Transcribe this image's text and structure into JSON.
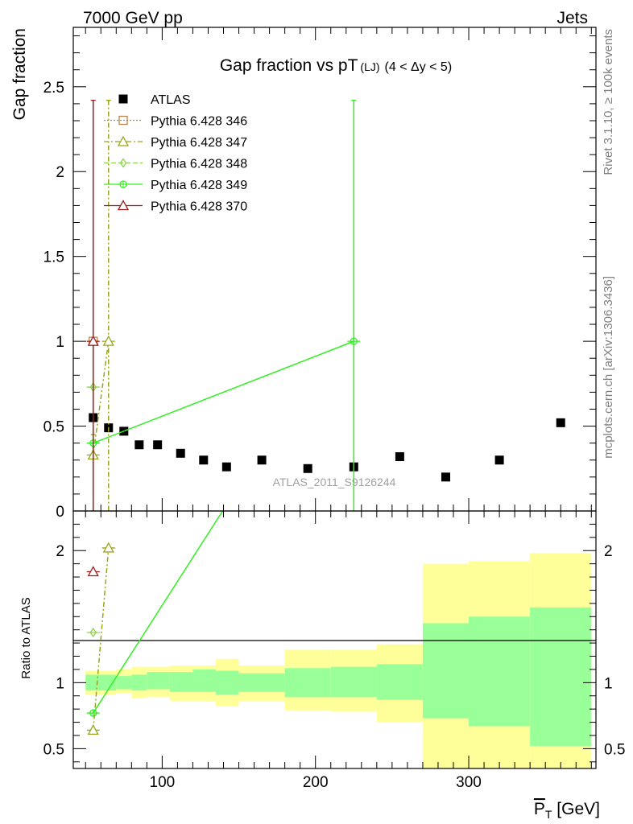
{
  "header": {
    "left": "7000 GeV pp",
    "right": "Jets"
  },
  "side_labels": {
    "rivet": "Rivet 3.1.10, ≥ 100k events",
    "mcplots": "mcplots.cern.ch [arXiv:1306.3436]"
  },
  "watermark": "ATLAS_2011_S9126244",
  "chart_data": [
    {
      "type": "scatter",
      "panel": "main",
      "title": "Gap fraction vs pT",
      "title_sub": "(LJ)",
      "title_cut": "(4 < Δy < 5)",
      "ylabel": "Gap fraction",
      "xlim": [
        42,
        383
      ],
      "ylim": [
        0,
        2.85
      ],
      "yticks": [
        0,
        0.5,
        1,
        1.5,
        2,
        2.5
      ],
      "ytick_labels": [
        "0",
        "0.5",
        "1",
        "1.5",
        "2",
        "2.5"
      ],
      "legend_position": "top-left",
      "series": [
        {
          "name": "ATLAS",
          "color": "#000000",
          "marker": "square",
          "x": [
            55,
            65,
            75,
            85,
            97,
            112,
            127,
            142,
            165,
            195,
            225,
            255,
            285,
            320,
            360
          ],
          "y": [
            0.55,
            0.49,
            0.47,
            0.39,
            0.39,
            0.34,
            0.3,
            0.26,
            0.3,
            0.25,
            0.26,
            0.32,
            0.2,
            0.3,
            0.52
          ]
        },
        {
          "name": "Pythia 6.428 346",
          "color": "#b8864e",
          "marker": "open-square",
          "dash": "2,2",
          "x": [
            55
          ],
          "y": [
            1.0
          ]
        },
        {
          "name": "Pythia 6.428 347",
          "color": "#9aa51a",
          "marker": "open-triangle",
          "dash": "6,3,2,3",
          "x": [
            55,
            65
          ],
          "y": [
            0.33,
            1.0
          ],
          "err_hi": [
            0.45,
            2.42
          ],
          "err_lo": [
            0.0,
            0.0
          ]
        },
        {
          "name": "Pythia 6.428 348",
          "color": "#8fd14f",
          "marker": "open-diamond",
          "dash": "6,3",
          "x": [
            55
          ],
          "y": [
            0.73
          ],
          "err_hi": [
            1.0
          ],
          "err_lo": [
            0.07
          ]
        },
        {
          "name": "Pythia 6.428 349",
          "color": "#33ee22",
          "marker": "open-circle-cross",
          "dash": "",
          "x": [
            55,
            225
          ],
          "y": [
            0.4,
            1.0
          ],
          "err_hi": [
            0.4,
            2.42
          ],
          "err_lo": [
            0.0,
            0.0
          ]
        },
        {
          "name": "Pythia 6.428 370",
          "color": "#9b1c1c",
          "marker": "open-triangle",
          "dash": "",
          "x": [
            55
          ],
          "y": [
            1.0
          ],
          "err_hi": [
            2.42
          ],
          "err_lo": [
            0.0
          ]
        }
      ]
    },
    {
      "type": "line",
      "panel": "ratio",
      "ylabel": "Ratio to ATLAS",
      "xlabel": "P_T [GeV]",
      "xlim": [
        42,
        383
      ],
      "ylim": [
        0.35,
        2.3
      ],
      "yticks": [
        0.5,
        1,
        2
      ],
      "ytick_labels": [
        "0.5",
        "1",
        "2"
      ],
      "xticks": [
        100,
        200,
        300
      ],
      "xtick_labels": [
        "100",
        "200",
        "300"
      ],
      "bands": {
        "edges": [
          50,
          60,
          70,
          80,
          90,
          105,
          120,
          135,
          150,
          180,
          210,
          240,
          270,
          300,
          340,
          380
        ],
        "inner_lo": [
          0.94,
          0.94,
          0.95,
          0.94,
          0.95,
          0.93,
          0.93,
          0.91,
          0.93,
          0.89,
          0.89,
          0.87,
          0.73,
          0.67,
          0.52
        ],
        "inner_hi": [
          1.06,
          1.06,
          1.05,
          1.06,
          1.08,
          1.08,
          1.1,
          1.09,
          1.07,
          1.11,
          1.12,
          1.14,
          1.45,
          1.5,
          1.57
        ],
        "outer_lo": [
          0.91,
          0.91,
          0.92,
          0.88,
          0.89,
          0.86,
          0.86,
          0.82,
          0.86,
          0.79,
          0.78,
          0.7,
          0.35,
          0.35,
          0.35
        ],
        "outer_hi": [
          1.09,
          1.09,
          1.1,
          1.12,
          1.12,
          1.13,
          1.13,
          1.18,
          1.13,
          1.25,
          1.25,
          1.29,
          1.9,
          1.92,
          1.98
        ],
        "inner_color": "#99ff99",
        "outer_color": "#ffff99"
      },
      "series": [
        {
          "name": "Pythia 6.428 347",
          "color": "#9aa51a",
          "marker": "open-triangle",
          "dash": "6,3,2,3",
          "x": [
            55,
            65
          ],
          "y": [
            0.64,
            2.02
          ]
        },
        {
          "name": "Pythia 6.428 348",
          "color": "#8fd14f",
          "marker": "open-diamond",
          "dash": "6,3",
          "x": [
            55
          ],
          "y": [
            1.38
          ]
        },
        {
          "name": "Pythia 6.428 349",
          "color": "#33ee22",
          "marker": "open-circle-cross",
          "dash": "",
          "x": [
            55,
            225
          ],
          "y": [
            0.77,
            3.85
          ]
        },
        {
          "name": "Pythia 6.428 370",
          "color": "#9b1c1c",
          "marker": "open-triangle",
          "dash": "",
          "x": [
            55
          ],
          "y": [
            1.84
          ]
        }
      ]
    }
  ]
}
